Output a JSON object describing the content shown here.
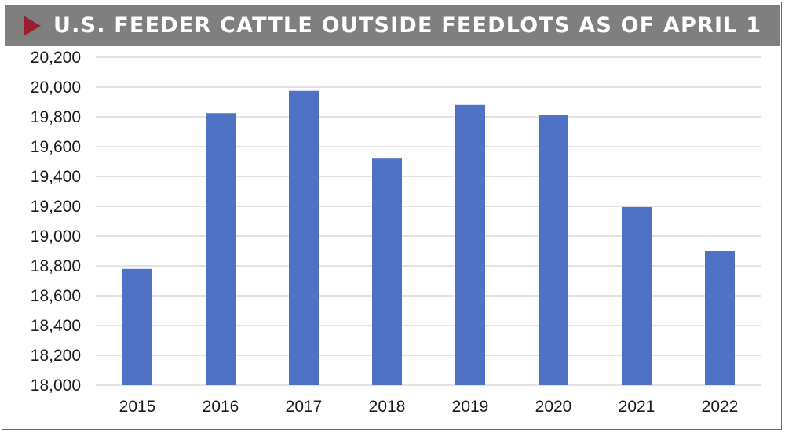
{
  "header": {
    "title": "U.S. FEEDER CATTLE OUTSIDE FEEDLOTS AS OF APRIL 1"
  },
  "colors": {
    "bar": "#4f72c4",
    "grid": "#d9d9d9",
    "banner": "#7f7f7f",
    "accent": "#9a1f2e"
  },
  "chart_data": {
    "type": "bar",
    "title": "U.S. FEEDER CATTLE OUTSIDE FEEDLOTS AS OF APRIL 1",
    "xlabel": "",
    "ylabel": "",
    "categories": [
      "2015",
      "2016",
      "2017",
      "2018",
      "2019",
      "2020",
      "2021",
      "2022"
    ],
    "values": [
      18780,
      19825,
      19975,
      19520,
      19880,
      19815,
      19195,
      18900
    ],
    "ylim": [
      18000,
      20200
    ],
    "yticks": [
      18000,
      18200,
      18400,
      18600,
      18800,
      19000,
      19200,
      19400,
      19600,
      19800,
      20000,
      20200
    ],
    "ytick_labels": [
      "18,000",
      "18,200",
      "18,400",
      "18,600",
      "18,800",
      "19,000",
      "19,200",
      "19,400",
      "19,600",
      "19,800",
      "20,000",
      "20,200"
    ],
    "grid": true,
    "legend": "none"
  }
}
